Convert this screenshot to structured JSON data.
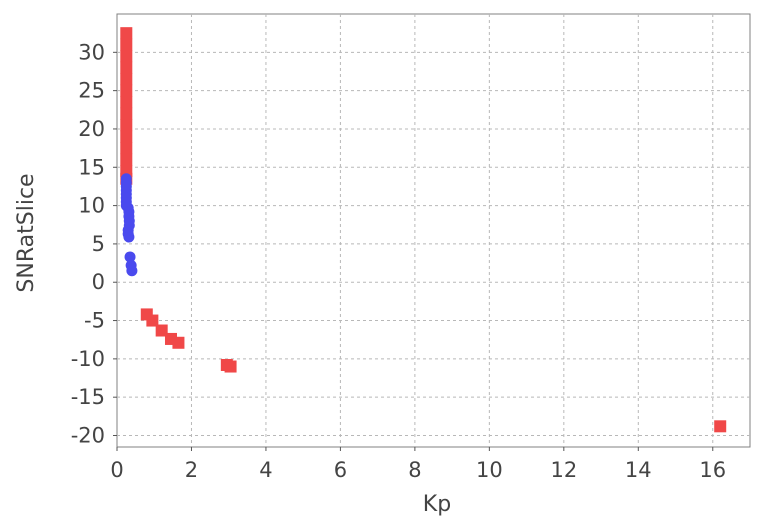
{
  "chart_data": {
    "type": "scatter",
    "title": "",
    "xlabel": "Kp",
    "ylabel": "SNRatSlice",
    "xlim": [
      0,
      17
    ],
    "ylim": [
      -21.5,
      35
    ],
    "xticks": [
      0,
      2,
      4,
      6,
      8,
      10,
      12,
      14,
      16
    ],
    "yticks": [
      30,
      25,
      20,
      15,
      10,
      5,
      0,
      -5,
      -10,
      -15,
      -20
    ],
    "grid": true,
    "legend": "none",
    "colors": {
      "red": "#f04848",
      "blue": "#4a4aee"
    },
    "series": [
      {
        "color": "#f04848",
        "marker": "square",
        "points": [
          [
            0.25,
            32.5
          ],
          [
            0.25,
            31
          ],
          [
            0.25,
            29.5
          ],
          [
            0.25,
            28
          ],
          [
            0.25,
            26.5
          ],
          [
            0.25,
            25
          ],
          [
            0.25,
            23.5
          ],
          [
            0.25,
            22
          ],
          [
            0.25,
            20.5
          ],
          [
            0.25,
            19
          ],
          [
            0.25,
            17.5
          ],
          [
            0.25,
            16
          ],
          [
            0.25,
            14.5
          ],
          [
            0.25,
            13.5
          ],
          [
            0.8,
            -4.2
          ],
          [
            0.95,
            -5.0
          ],
          [
            1.2,
            -6.3
          ],
          [
            1.45,
            -7.4
          ],
          [
            1.65,
            -7.9
          ],
          [
            2.95,
            -10.8
          ],
          [
            3.05,
            -11.0
          ],
          [
            16.2,
            -18.8
          ]
        ]
      },
      {
        "color": "#4a4aee",
        "marker": "circle",
        "points": [
          [
            0.25,
            13.5
          ],
          [
            0.25,
            13
          ],
          [
            0.25,
            12.5
          ],
          [
            0.25,
            12
          ],
          [
            0.25,
            11.5
          ],
          [
            0.25,
            11
          ],
          [
            0.25,
            10.5
          ],
          [
            0.25,
            10
          ],
          [
            0.3,
            9.7
          ],
          [
            0.32,
            9.2
          ],
          [
            0.32,
            8.6
          ],
          [
            0.33,
            8.0
          ],
          [
            0.33,
            7.4
          ],
          [
            0.3,
            6.8
          ],
          [
            0.3,
            6.3
          ],
          [
            0.32,
            5.9
          ],
          [
            0.35,
            3.3
          ],
          [
            0.38,
            2.2
          ],
          [
            0.4,
            1.5
          ]
        ]
      }
    ]
  }
}
